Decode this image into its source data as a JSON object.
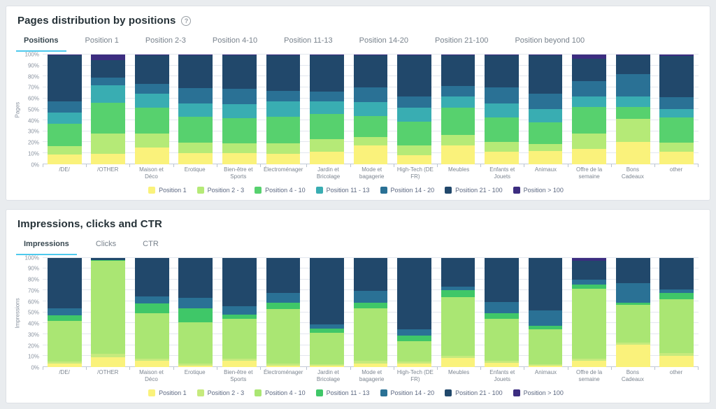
{
  "colors": {
    "accent": "#4ec9ed",
    "card_bg": "#ffffff",
    "page_bg": "#e9ecef"
  },
  "cards": [
    {
      "title": "Pages distribution by positions",
      "help_icon": "?",
      "tabs": [
        {
          "label": "Positions",
          "active": true
        },
        {
          "label": "Position 1",
          "active": false
        },
        {
          "label": "Position 2-3",
          "active": false
        },
        {
          "label": "Position 4-10",
          "active": false
        },
        {
          "label": "Position 11-13",
          "active": false
        },
        {
          "label": "Position 14-20",
          "active": false
        },
        {
          "label": "Position 21-100",
          "active": false
        },
        {
          "label": "Position beyond 100",
          "active": false
        }
      ]
    },
    {
      "title": "Impressions, clicks and CTR",
      "tabs": [
        {
          "label": "Impressions",
          "active": true
        },
        {
          "label": "Clicks",
          "active": false
        },
        {
          "label": "CTR",
          "active": false
        }
      ]
    }
  ],
  "chart_data": [
    {
      "type": "bar",
      "stacked": true,
      "percent": true,
      "title": "Pages distribution by positions",
      "xlabel": "",
      "ylabel": "Pages",
      "ylim": [
        0,
        100
      ],
      "ytick_step": 10,
      "ytick_suffix": "%",
      "grid": true,
      "legend_position": "bottom",
      "categories": [
        "/DE/",
        "/OTHER",
        "Maison et Déco",
        "Erotique",
        "Bien-être et Sports",
        "Électroménager",
        "Jardin et Bricolage",
        "Mode et bagagerie",
        "High-Tech (DE FR)",
        "Meubles",
        "Enfants et Jouets",
        "Animaux",
        "Offre de la semaine",
        "Bons Cadeaux",
        "other"
      ],
      "series": [
        {
          "name": "Position 1",
          "color": "#faf27b",
          "values": [
            8.5,
            9,
            15,
            10,
            10,
            9,
            11,
            17,
            8,
            17,
            11,
            12,
            14,
            20,
            11.5
          ]
        },
        {
          "name": "Position 2 - 3",
          "color": "#b5ea77",
          "values": [
            7.5,
            19,
            13,
            9.5,
            9,
            10,
            12,
            7.5,
            9,
            9.5,
            9,
            6,
            14,
            21.5,
            8
          ]
        },
        {
          "name": "Position 4 - 10",
          "color": "#57d16e",
          "values": [
            21,
            28,
            23.5,
            23.5,
            23,
            24,
            23,
            19.5,
            21.5,
            25,
            22.5,
            20,
            24,
            10.5,
            23
          ]
        },
        {
          "name": "Position 11 - 13",
          "color": "#39adb2",
          "values": [
            10,
            16,
            12.5,
            12.5,
            12.5,
            14,
            11.5,
            12.5,
            13,
            10.5,
            12.5,
            12,
            10,
            10,
            8
          ]
        },
        {
          "name": "Position 14 - 20",
          "color": "#2a7195",
          "values": [
            10.5,
            7,
            9.5,
            14,
            14,
            10,
            8.5,
            13.5,
            10,
            9,
            15,
            14,
            14,
            20,
            10.5
          ]
        },
        {
          "name": "Position 21 - 100",
          "color": "#21486b",
          "values": [
            42,
            16,
            26,
            30,
            31,
            32.5,
            33.5,
            29.5,
            38,
            28.5,
            29.5,
            35.5,
            20,
            17.5,
            37.5
          ]
        },
        {
          "name": "Position > 100",
          "color": "#3c2d80",
          "values": [
            0.5,
            5,
            0.5,
            0.5,
            0.5,
            0.5,
            0.5,
            0.5,
            0.5,
            0.5,
            0.5,
            0.5,
            4,
            0.5,
            1.5
          ]
        }
      ]
    },
    {
      "type": "bar",
      "stacked": true,
      "percent": true,
      "title": "Impressions, clicks and CTR",
      "xlabel": "",
      "ylabel": "Impressions",
      "ylim": [
        0,
        100
      ],
      "ytick_step": 10,
      "ytick_suffix": "%",
      "grid": true,
      "legend_position": "bottom",
      "categories": [
        "/DE/",
        "/OTHER",
        "Maison et Déco",
        "Erotique",
        "Bien-être et Sports",
        "Électroménager",
        "Jardin et Bricolage",
        "Mode et bagagerie",
        "High-Tech (DE FR)",
        "Meubles",
        "Enfants et Jouets",
        "Animaux",
        "Offre de la semaine",
        "Bons Cadeaux",
        "other"
      ],
      "series": [
        {
          "name": "Position 1",
          "color": "#faf27b",
          "values": [
            3,
            9,
            6,
            1,
            6,
            1,
            1,
            3.5,
            3.5,
            8.5,
            4,
            1,
            6,
            20.5,
            10.5
          ]
        },
        {
          "name": "Position 2 - 3",
          "color": "#c6ea7d",
          "values": [
            2,
            3,
            2,
            2,
            2,
            2,
            1.5,
            2,
            1.5,
            2,
            2,
            1.5,
            2,
            2,
            2
          ]
        },
        {
          "name": "Position 4 - 10",
          "color": "#aae673",
          "values": [
            37.5,
            85,
            41,
            38,
            36,
            50,
            29,
            48.5,
            18.5,
            53.5,
            38,
            32,
            63.5,
            34.5,
            49.5
          ]
        },
        {
          "name": "Position 11 - 13",
          "color": "#3fc768",
          "values": [
            5,
            1,
            9,
            13,
            4,
            5.5,
            3.5,
            5,
            5,
            6,
            5.5,
            3.5,
            4,
            2,
            5.5
          ]
        },
        {
          "name": "Position 14 - 20",
          "color": "#2a7195",
          "values": [
            6,
            0,
            6.5,
            9,
            7.5,
            9,
            4,
            10.5,
            6,
            3.5,
            10,
            13.5,
            4.5,
            17.5,
            3.5
          ]
        },
        {
          "name": "Position 21 - 100",
          "color": "#21486b",
          "values": [
            46.5,
            2,
            35.5,
            37,
            44.5,
            32.5,
            61,
            30.5,
            65.5,
            26.5,
            40.5,
            48.5,
            17,
            23.5,
            29
          ]
        },
        {
          "name": "Position > 100",
          "color": "#3c2d80",
          "values": [
            0,
            0,
            0,
            0,
            0,
            0,
            0,
            0,
            0,
            0,
            0,
            0,
            3,
            0,
            0
          ]
        }
      ]
    }
  ]
}
